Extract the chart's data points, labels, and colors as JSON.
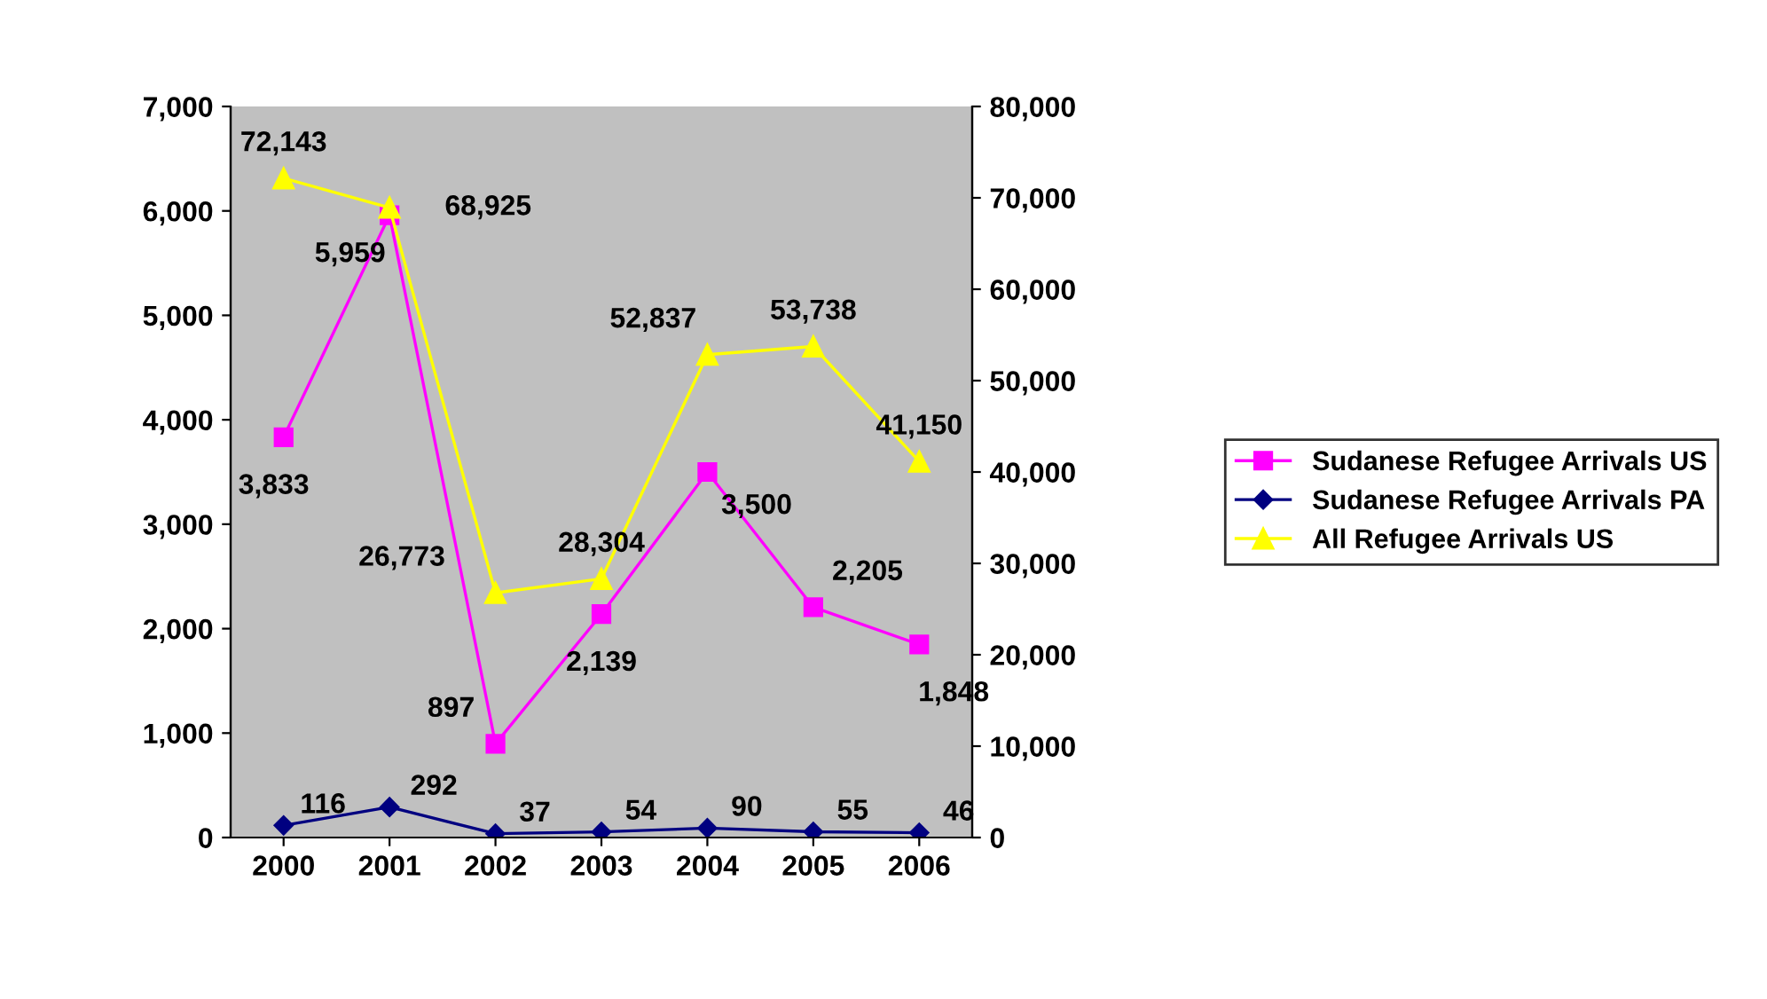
{
  "chart_data": {
    "type": "line",
    "categories": [
      "2000",
      "2001",
      "2002",
      "2003",
      "2004",
      "2005",
      "2006"
    ],
    "series": [
      {
        "name": "Sudanese Refugee Arrivals US",
        "color": "#ff00ff",
        "marker": "square",
        "values": [
          3833,
          5959,
          897,
          2139,
          3500,
          2205,
          1848
        ],
        "value_labels": [
          "3,833",
          "5,959",
          "897",
          "2,139",
          "3,500",
          "2,205",
          "1,848"
        ]
      },
      {
        "name": "Sudanese Refugee Arrivals PA",
        "color": "#000080",
        "marker": "diamond",
        "values": [
          116,
          292,
          37,
          54,
          90,
          55,
          46
        ],
        "value_labels": [
          "116",
          "292",
          "37",
          "54",
          "90",
          "55",
          "46"
        ]
      },
      {
        "name": "All Refugee Arrivals US",
        "color": "#ffff00",
        "marker": "triangle",
        "axis": "y2",
        "values": [
          72143,
          68925,
          26773,
          28304,
          52837,
          53738,
          41150
        ],
        "value_labels": [
          "72,143",
          "68,925",
          "26,773",
          "28,304",
          "52,837",
          "53,738",
          "41,150"
        ]
      }
    ],
    "ylim": [
      0,
      7000
    ],
    "yticks": [
      0,
      {
        "value": 1000,
        "label": "1,000"
      },
      {
        "value": 2000,
        "label": "2,000"
      },
      {
        "value": 3000,
        "label": "3,000"
      },
      {
        "value": 4000,
        "label": "4,000"
      },
      {
        "value": 5000,
        "label": "5,000"
      },
      {
        "value": 6000,
        "label": "6,000"
      },
      {
        "value": 7000,
        "label": "7,000"
      }
    ],
    "y2lim": [
      0,
      80000
    ],
    "y2ticks": [
      0,
      {
        "value": 10000,
        "label": "10,000"
      },
      {
        "value": 20000,
        "label": "20,000"
      },
      {
        "value": 30000,
        "label": "30,000"
      },
      {
        "value": 40000,
        "label": "40,000"
      },
      {
        "value": 50000,
        "label": "50,000"
      },
      {
        "value": 60000,
        "label": "60,000"
      },
      {
        "value": 70000,
        "label": "70,000"
      },
      {
        "value": 80000,
        "label": "80,000"
      }
    ],
    "grid": false,
    "legend": "right"
  }
}
